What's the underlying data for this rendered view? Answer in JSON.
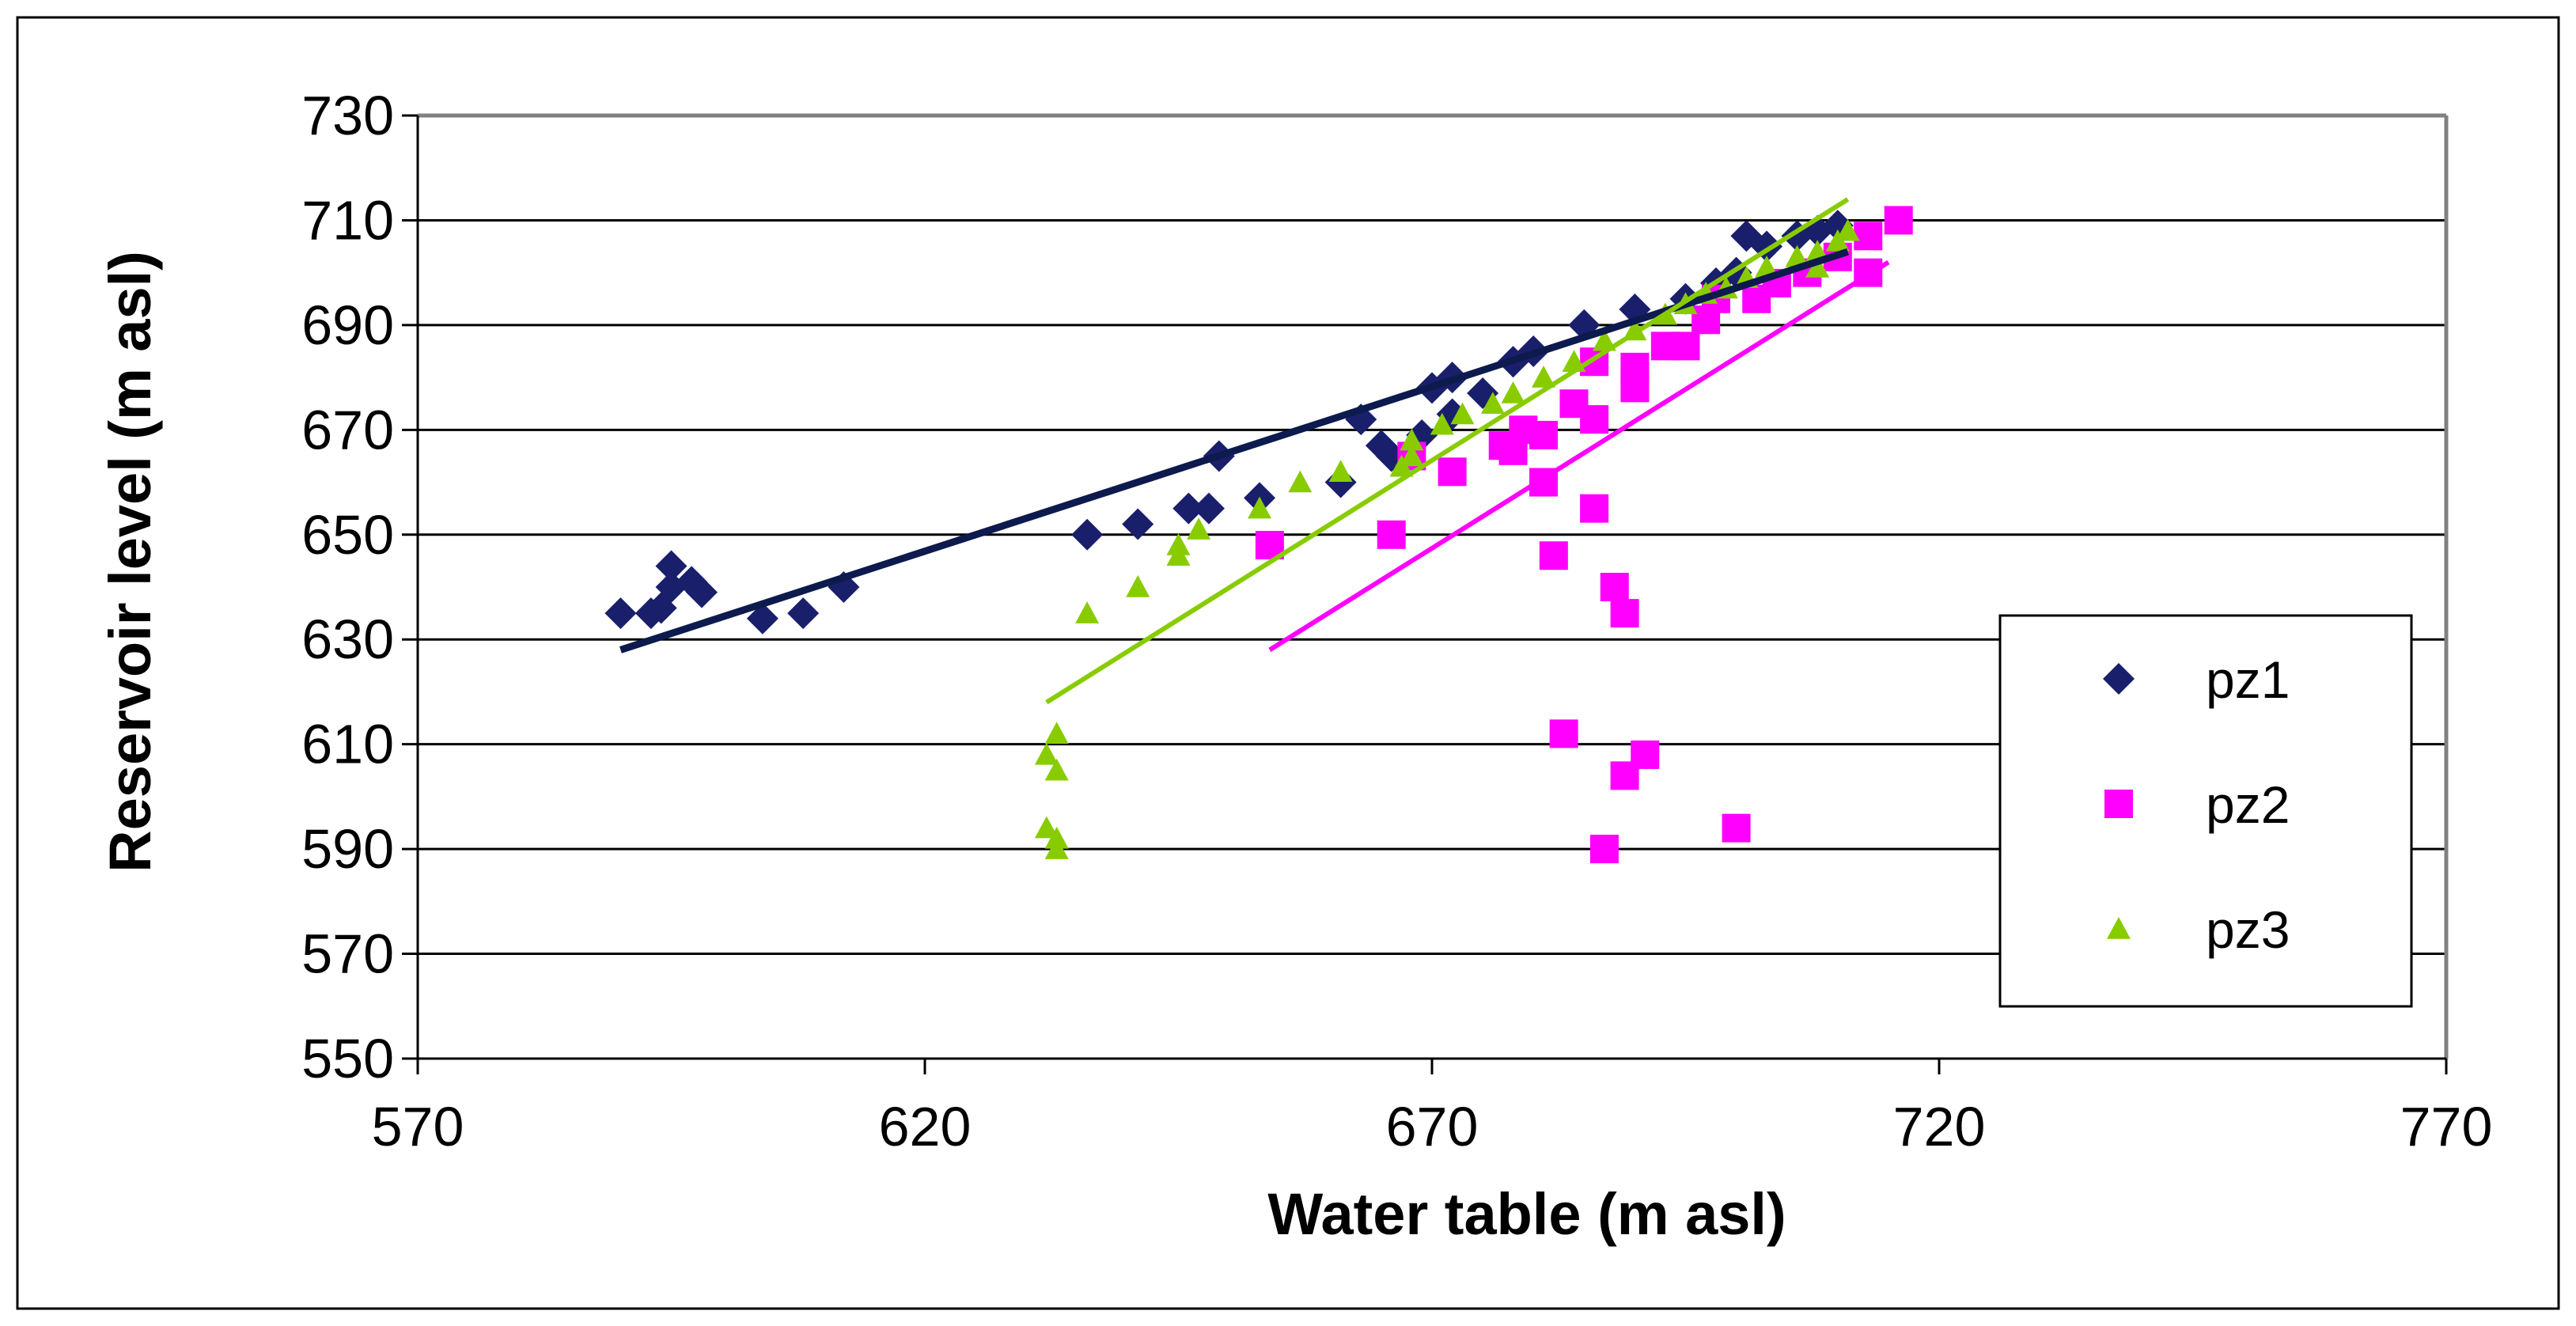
{
  "chart_data": {
    "type": "scatter",
    "title": "",
    "xlabel": "Water table (m asl)",
    "ylabel": "Reservoir level (m asl)",
    "xlim": [
      570,
      770
    ],
    "ylim": [
      550,
      730
    ],
    "xticks": [
      570,
      620,
      670,
      720,
      770
    ],
    "yticks": [
      550,
      570,
      590,
      610,
      630,
      650,
      670,
      690,
      710,
      730
    ],
    "grid": "horizontal",
    "legend_position": "right",
    "series": [
      {
        "name": "pz1",
        "marker": "diamond",
        "color": "#1a1f6b",
        "points": [
          [
            590,
            635
          ],
          [
            593,
            635
          ],
          [
            594,
            636
          ],
          [
            595,
            640
          ],
          [
            595,
            644
          ],
          [
            597,
            641
          ],
          [
            598,
            639
          ],
          [
            604,
            634
          ],
          [
            608,
            635
          ],
          [
            612,
            640
          ],
          [
            636,
            650
          ],
          [
            641,
            652
          ],
          [
            646,
            655
          ],
          [
            648,
            655
          ],
          [
            649,
            665
          ],
          [
            653,
            657
          ],
          [
            661,
            660
          ],
          [
            663,
            672
          ],
          [
            665,
            667
          ],
          [
            666,
            665
          ],
          [
            669,
            669
          ],
          [
            670,
            678
          ],
          [
            672,
            680
          ],
          [
            672,
            673
          ],
          [
            675,
            677
          ],
          [
            678,
            683
          ],
          [
            680,
            685
          ],
          [
            685,
            690
          ],
          [
            690,
            693
          ],
          [
            695,
            695
          ],
          [
            698,
            698
          ],
          [
            700,
            700
          ],
          [
            701,
            707
          ],
          [
            703,
            705
          ],
          [
            706,
            707
          ],
          [
            708,
            708
          ],
          [
            710,
            709
          ]
        ],
        "trend": [
          [
            590,
            628
          ],
          [
            711,
            704
          ]
        ],
        "trend_color": "#0d1a4d"
      },
      {
        "name": "pz2",
        "marker": "square",
        "color": "#ff00ff",
        "points": [
          [
            654,
            648
          ],
          [
            666,
            650
          ],
          [
            668,
            665
          ],
          [
            672,
            662
          ],
          [
            677,
            667
          ],
          [
            678,
            666
          ],
          [
            679,
            670
          ],
          [
            681,
            669
          ],
          [
            681,
            660
          ],
          [
            682,
            646
          ],
          [
            683,
            612
          ],
          [
            684,
            675
          ],
          [
            686,
            672
          ],
          [
            686,
            655
          ],
          [
            686,
            683
          ],
          [
            687,
            590
          ],
          [
            688,
            640
          ],
          [
            689,
            635
          ],
          [
            689,
            604
          ],
          [
            690,
            682
          ],
          [
            690,
            678
          ],
          [
            691,
            608
          ],
          [
            693,
            686
          ],
          [
            695,
            686
          ],
          [
            697,
            691
          ],
          [
            698,
            695
          ],
          [
            700,
            594
          ],
          [
            702,
            695
          ],
          [
            704,
            698
          ],
          [
            707,
            700
          ],
          [
            710,
            703
          ],
          [
            713,
            700
          ],
          [
            713,
            707
          ],
          [
            716,
            710
          ]
        ],
        "trend": [
          [
            654,
            628
          ],
          [
            715,
            702
          ]
        ],
        "trend_color": "#ff00ff"
      },
      {
        "name": "pz3",
        "marker": "triangle",
        "color": "#88cc00",
        "points": [
          [
            632,
            594
          ],
          [
            632,
            608
          ],
          [
            633,
            612
          ],
          [
            633,
            605
          ],
          [
            633,
            592
          ],
          [
            633,
            590
          ],
          [
            636,
            635
          ],
          [
            641,
            640
          ],
          [
            645,
            646
          ],
          [
            645,
            648
          ],
          [
            647,
            651
          ],
          [
            653,
            655
          ],
          [
            657,
            660
          ],
          [
            661,
            662
          ],
          [
            667,
            663
          ],
          [
            668,
            665
          ],
          [
            668,
            668
          ],
          [
            671,
            671
          ],
          [
            673,
            673
          ],
          [
            676,
            675
          ],
          [
            678,
            677
          ],
          [
            681,
            680
          ],
          [
            684,
            683
          ],
          [
            687,
            687
          ],
          [
            690,
            689
          ],
          [
            693,
            692
          ],
          [
            695,
            694
          ],
          [
            697,
            696
          ],
          [
            699,
            697
          ],
          [
            701,
            699
          ],
          [
            703,
            701
          ],
          [
            706,
            703
          ],
          [
            708,
            704
          ],
          [
            708,
            701
          ],
          [
            710,
            706
          ],
          [
            711,
            708
          ]
        ],
        "trend": [
          [
            632,
            618
          ],
          [
            711,
            714
          ]
        ],
        "trend_color": "#88cc00"
      }
    ]
  }
}
